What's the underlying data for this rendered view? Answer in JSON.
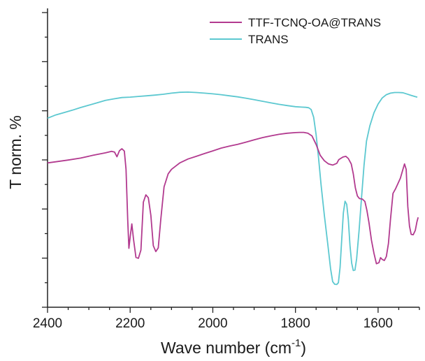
{
  "chart_data": {
    "type": "line",
    "xlabel": "Wave number (cm",
    "xlabel_superscript": "-1",
    "xlabel_suffix": ")",
    "ylabel": "T norm. %",
    "xlim": [
      2400,
      1500
    ],
    "x_reversed": true,
    "x_ticks": [
      "2400",
      "2200",
      "2000",
      "1800",
      "1600"
    ],
    "x_tick_values": [
      2400,
      2200,
      2000,
      1800,
      1600
    ],
    "y_ticks_labeled": false,
    "ylim": [
      0,
      100
    ],
    "legend_position": "top-right",
    "series": [
      {
        "name": "TTF-TCNQ-OA@TRANS",
        "color": "#b23a8f",
        "points": [
          [
            2400,
            56
          ],
          [
            2380,
            56.5
          ],
          [
            2350,
            57.3
          ],
          [
            2320,
            58.2
          ],
          [
            2290,
            59.5
          ],
          [
            2260,
            60.6
          ],
          [
            2245,
            61.3
          ],
          [
            2238,
            61
          ],
          [
            2232,
            58.8
          ],
          [
            2226,
            61.6
          ],
          [
            2220,
            62.5
          ],
          [
            2214,
            61.4
          ],
          [
            2210,
            53
          ],
          [
            2206,
            30
          ],
          [
            2203,
            16.8
          ],
          [
            2200,
            22
          ],
          [
            2196,
            28
          ],
          [
            2192,
            21
          ],
          [
            2186,
            12.6
          ],
          [
            2180,
            12.2
          ],
          [
            2174,
            16
          ],
          [
            2168,
            38
          ],
          [
            2162,
            41.3
          ],
          [
            2156,
            40
          ],
          [
            2150,
            32
          ],
          [
            2144,
            18
          ],
          [
            2138,
            15.3
          ],
          [
            2132,
            17
          ],
          [
            2126,
            30
          ],
          [
            2118,
            45
          ],
          [
            2108,
            51
          ],
          [
            2100,
            53
          ],
          [
            2080,
            56
          ],
          [
            2060,
            57.8
          ],
          [
            2040,
            59
          ],
          [
            2020,
            60.3
          ],
          [
            2000,
            61.5
          ],
          [
            1980,
            62.8
          ],
          [
            1960,
            63.7
          ],
          [
            1940,
            64.5
          ],
          [
            1920,
            65.5
          ],
          [
            1900,
            66.6
          ],
          [
            1880,
            67.6
          ],
          [
            1860,
            68.4
          ],
          [
            1840,
            69.1
          ],
          [
            1820,
            69.6
          ],
          [
            1800,
            69.9
          ],
          [
            1790,
            70
          ],
          [
            1780,
            70
          ],
          [
            1770,
            69.6
          ],
          [
            1760,
            68.4
          ],
          [
            1750,
            64.5
          ],
          [
            1740,
            59.5
          ],
          [
            1730,
            57
          ],
          [
            1720,
            55.5
          ],
          [
            1710,
            55
          ],
          [
            1700,
            55.8
          ],
          [
            1695,
            57.5
          ],
          [
            1685,
            58.7
          ],
          [
            1678,
            59
          ],
          [
            1672,
            58
          ],
          [
            1665,
            55.5
          ],
          [
            1660,
            51
          ],
          [
            1655,
            44.5
          ],
          [
            1650,
            40.8
          ],
          [
            1645,
            39.6
          ],
          [
            1638,
            39.4
          ],
          [
            1632,
            38.3
          ],
          [
            1627,
            34.2
          ],
          [
            1622,
            28.5
          ],
          [
            1616,
            20.5
          ],
          [
            1610,
            14.5
          ],
          [
            1604,
            9.7
          ],
          [
            1598,
            10.2
          ],
          [
            1594,
            12.5
          ],
          [
            1590,
            11.7
          ],
          [
            1585,
            11.2
          ],
          [
            1580,
            13
          ],
          [
            1575,
            19
          ],
          [
            1570,
            30
          ],
          [
            1564,
            42
          ],
          [
            1558,
            44
          ],
          [
            1552,
            46.5
          ],
          [
            1546,
            49
          ],
          [
            1540,
            53
          ],
          [
            1536,
            55.5
          ],
          [
            1532,
            53
          ],
          [
            1528,
            36
          ],
          [
            1524,
            27
          ],
          [
            1520,
            23.2
          ],
          [
            1515,
            23
          ],
          [
            1510,
            25
          ],
          [
            1506,
            29
          ],
          [
            1503,
            31
          ]
        ]
      },
      {
        "name": "TRANS",
        "color": "#5cc8d0",
        "points": [
          [
            2400,
            76.5
          ],
          [
            2380,
            78
          ],
          [
            2360,
            79.1
          ],
          [
            2340,
            80.2
          ],
          [
            2320,
            81.4
          ],
          [
            2300,
            82.5
          ],
          [
            2280,
            83.6
          ],
          [
            2260,
            84.7
          ],
          [
            2240,
            85.4
          ],
          [
            2220,
            86
          ],
          [
            2200,
            86.2
          ],
          [
            2180,
            86.5
          ],
          [
            2160,
            86.8
          ],
          [
            2140,
            87.1
          ],
          [
            2120,
            87.5
          ],
          [
            2100,
            88
          ],
          [
            2080,
            88.4
          ],
          [
            2060,
            88.5
          ],
          [
            2040,
            88.3
          ],
          [
            2020,
            88
          ],
          [
            2000,
            87.7
          ],
          [
            1980,
            87.3
          ],
          [
            1960,
            86.8
          ],
          [
            1940,
            86.3
          ],
          [
            1920,
            85.7
          ],
          [
            1900,
            85
          ],
          [
            1880,
            84.3
          ],
          [
            1860,
            83.6
          ],
          [
            1840,
            82.9
          ],
          [
            1820,
            82.3
          ],
          [
            1800,
            81.8
          ],
          [
            1785,
            81.6
          ],
          [
            1775,
            81.5
          ],
          [
            1768,
            81.3
          ],
          [
            1762,
            80.5
          ],
          [
            1756,
            77
          ],
          [
            1750,
            69
          ],
          [
            1744,
            58
          ],
          [
            1738,
            46
          ],
          [
            1730,
            32
          ],
          [
            1722,
            19
          ],
          [
            1715,
            7.5
          ],
          [
            1710,
            1.5
          ],
          [
            1705,
            0.3
          ],
          [
            1700,
            0.2
          ],
          [
            1696,
            1
          ],
          [
            1692,
            8
          ],
          [
            1688,
            21
          ],
          [
            1684,
            33
          ],
          [
            1680,
            38.4
          ],
          [
            1676,
            37
          ],
          [
            1672,
            30
          ],
          [
            1668,
            18
          ],
          [
            1664,
            10
          ],
          [
            1660,
            6.6
          ],
          [
            1656,
            6.8
          ],
          [
            1652,
            12
          ],
          [
            1646,
            25
          ],
          [
            1640,
            40
          ],
          [
            1634,
            55
          ],
          [
            1628,
            66
          ],
          [
            1620,
            73
          ],
          [
            1610,
            79
          ],
          [
            1600,
            83
          ],
          [
            1590,
            85.8
          ],
          [
            1580,
            87.3
          ],
          [
            1570,
            88
          ],
          [
            1560,
            88.3
          ],
          [
            1550,
            88.3
          ],
          [
            1540,
            88.2
          ],
          [
            1530,
            87.6
          ],
          [
            1520,
            87
          ],
          [
            1510,
            86.4
          ],
          [
            1505,
            86.2
          ]
        ]
      }
    ]
  }
}
